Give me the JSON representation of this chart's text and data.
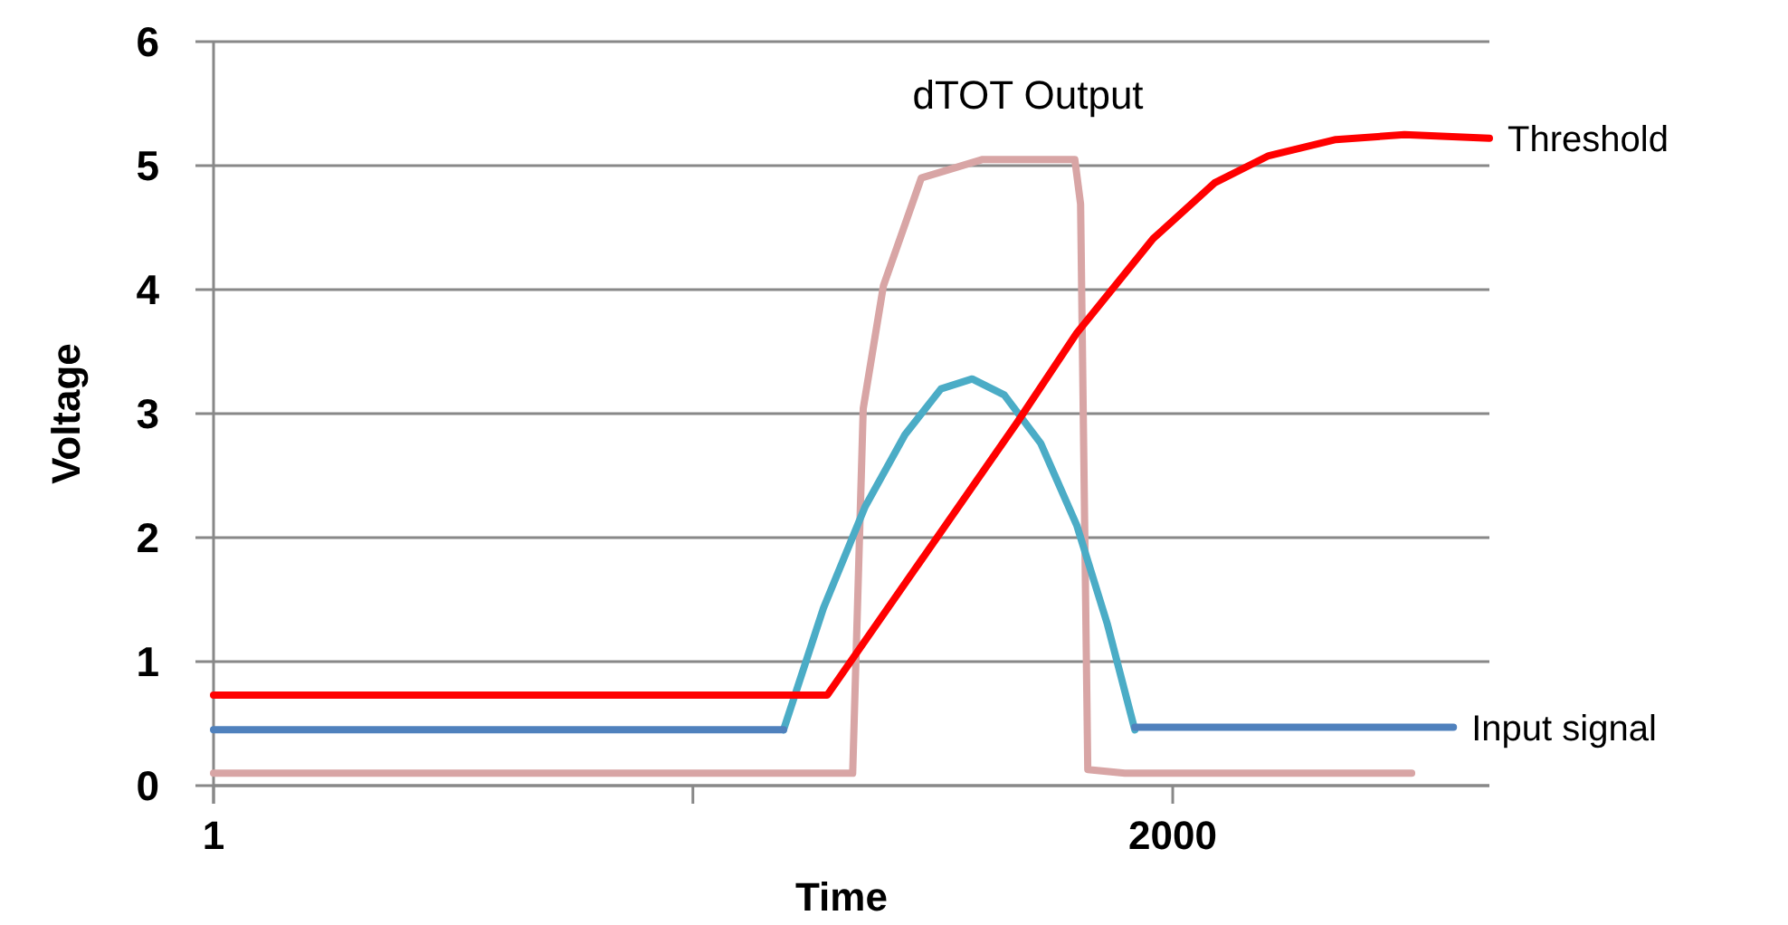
{
  "chart_data": {
    "type": "line",
    "xlabel": "Time",
    "ylabel": "Voltage",
    "xlim": [
      1,
      2660
    ],
    "ylim": [
      0,
      6
    ],
    "xticks": [
      1,
      {
        "value": 1000,
        "label": null
      },
      2000
    ],
    "yticks": [
      0,
      1,
      2,
      3,
      4,
      5,
      6
    ],
    "grid": "y",
    "marker": "none",
    "line_style": "solid",
    "annotations": [
      "dTOT Output"
    ],
    "series": [
      {
        "color": "#d8a5a5",
        "x": [
          1,
          200,
          400,
          600,
          800,
          1000,
          1200,
          1333,
          1355,
          1397,
          1476,
          1604,
          1796,
          1808,
          1823,
          1900,
          2100,
          2300,
          2498
        ],
        "values": [
          0.1,
          0.1,
          0.1,
          0.1,
          0.1,
          0.1,
          0.1,
          0.1,
          3.04,
          4.03,
          4.9,
          5.05,
          5.05,
          4.69,
          0.13,
          0.1,
          0.1,
          0.1,
          0.1
        ]
      },
      {
        "color": "#4bacc6",
        "x": [
          1189,
          1272,
          1359,
          1442,
          1517,
          1582,
          1649,
          1725,
          1800,
          1864,
          1921
        ],
        "values": [
          0.45,
          1.43,
          2.25,
          2.83,
          3.2,
          3.28,
          3.15,
          2.76,
          2.1,
          1.3,
          0.45
        ]
      },
      {
        "name": "Input signal",
        "color": "#4f81bd",
        "x": [
          1,
          1189,
          1500,
          1921,
          2585
        ],
        "values": [
          0.45,
          0.45,
          null,
          0.47,
          0.47
        ]
      },
      {
        "name": "Threshold",
        "color": "#ff0000",
        "x": [
          1,
          1280,
          1676,
          1800,
          1959,
          2087,
          2200,
          2340,
          2483,
          2660
        ],
        "values": [
          0.73,
          0.73,
          2.93,
          3.65,
          4.41,
          4.86,
          5.08,
          5.21,
          5.25,
          5.22
        ]
      }
    ]
  }
}
